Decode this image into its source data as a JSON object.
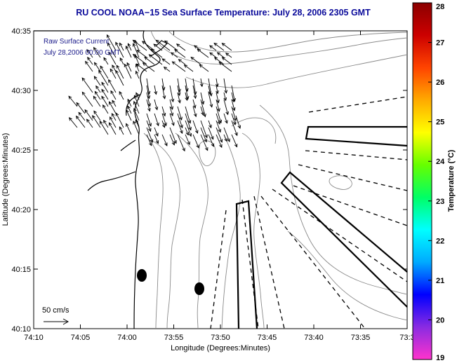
{
  "chart_data": {
    "type": "map",
    "title": "RU COOL  NOAA−15  Sea Surface Temperature:  July 28, 2006 2305 GMT",
    "xlabel": "Longitude (Degrees:Minutes)",
    "ylabel": "Latitude (Degrees:Minutes)",
    "x_ticks": [
      "74:10",
      "74:05",
      "74:00",
      "73:55",
      "73:50",
      "73:45",
      "73:40",
      "73:35",
      "73:3"
    ],
    "y_ticks": [
      "40:35",
      "40:30",
      "40:25",
      "40:20",
      "40:15",
      "40:10"
    ],
    "colorbar": {
      "label": "Temperature (°C)",
      "min": 19,
      "max": 28,
      "ticks": [
        "28",
        "27",
        "26",
        "25",
        "24",
        "23",
        "22",
        "21",
        "20",
        "19"
      ],
      "colors": [
        "#ff33cc",
        "#8a2be2",
        "#0000ff",
        "#00aaff",
        "#00ffff",
        "#00ff66",
        "#66ff00",
        "#ffff00",
        "#ffaa00",
        "#ff4400",
        "#cc0000",
        "#8b0000"
      ]
    },
    "annotations": {
      "line1": "Raw Surface Current",
      "line2": "July 28,2006 00:00 GMT",
      "scale_label": "50 cm/s"
    },
    "markers": [
      {
        "type": "station",
        "lon": "73:59",
        "lat": "40:14.5"
      },
      {
        "type": "station",
        "lon": "73:52.5",
        "lat": "40:13"
      }
    ]
  }
}
